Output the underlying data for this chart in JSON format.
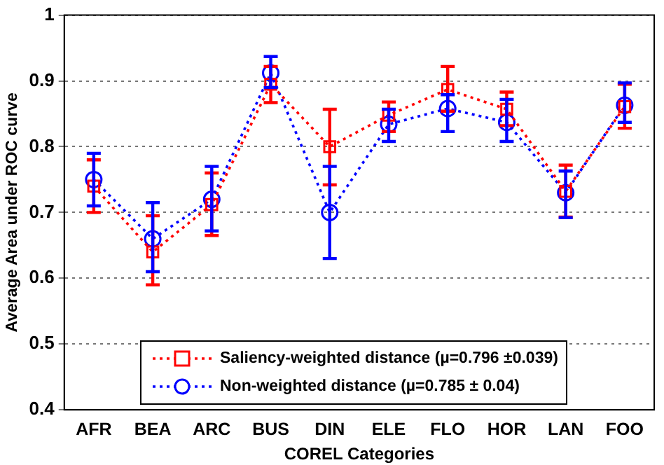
{
  "chart_data": {
    "type": "line",
    "xlabel": "COREL Categories",
    "ylabel": "Average Area under ROC curve",
    "categories": [
      "AFR",
      "BEA",
      "ARC",
      "BUS",
      "DIN",
      "ELE",
      "FLO",
      "HOR",
      "LAN",
      "FOO"
    ],
    "series": [
      {
        "name": "Saliency-weighted distance (µ=0.796 ±0.039)",
        "color": "#ff0000",
        "marker": "square",
        "values": [
          0.74,
          0.64,
          0.712,
          0.895,
          0.8,
          0.848,
          0.887,
          0.857,
          0.732,
          0.861
        ],
        "errors": [
          [
            0.7,
            0.78
          ],
          [
            0.59,
            0.695
          ],
          [
            0.665,
            0.76
          ],
          [
            0.867,
            0.922
          ],
          [
            0.742,
            0.857
          ],
          [
            0.823,
            0.868
          ],
          [
            0.854,
            0.922
          ],
          [
            0.832,
            0.883
          ],
          [
            0.693,
            0.772
          ],
          [
            0.828,
            0.895
          ]
        ]
      },
      {
        "name": "Non-weighted distance (µ=0.785 ± 0.04)",
        "color": "#0000ff",
        "marker": "circle",
        "values": [
          0.75,
          0.66,
          0.72,
          0.912,
          0.7,
          0.834,
          0.858,
          0.837,
          0.73,
          0.863
        ],
        "errors": [
          [
            0.71,
            0.79
          ],
          [
            0.61,
            0.715
          ],
          [
            0.672,
            0.77
          ],
          [
            0.89,
            0.937
          ],
          [
            0.63,
            0.77
          ],
          [
            0.808,
            0.857
          ],
          [
            0.823,
            0.879
          ],
          [
            0.808,
            0.872
          ],
          [
            0.692,
            0.763
          ],
          [
            0.837,
            0.897
          ]
        ]
      }
    ],
    "ylim": [
      0.4,
      1
    ],
    "yticks": [
      0.4,
      0.5,
      0.6,
      0.7,
      0.8,
      0.9,
      1
    ],
    "grid": "y",
    "legend": "bottom",
    "line_style": "dotted"
  }
}
